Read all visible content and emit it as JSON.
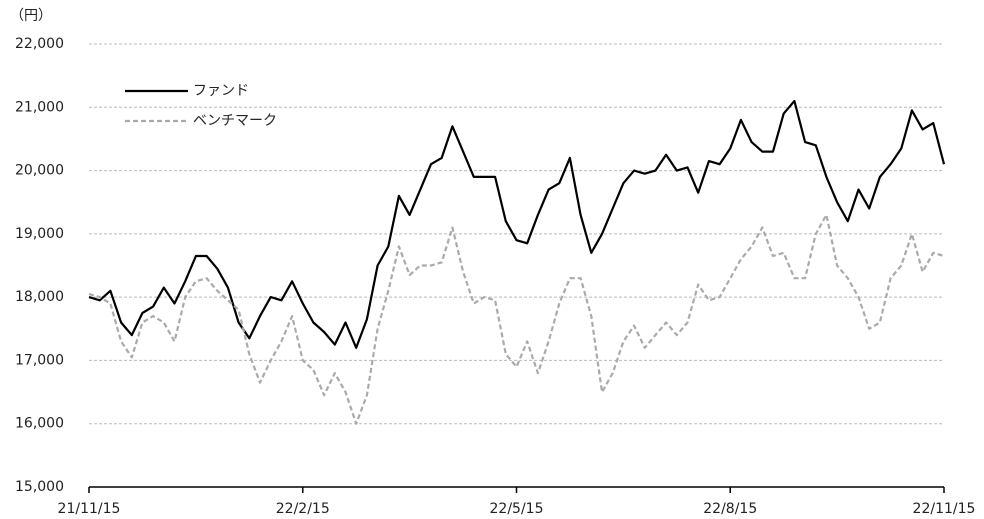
{
  "chart_data": {
    "type": "line",
    "unit_label": "（円）",
    "categories": [
      "21/11/15",
      null,
      null,
      null,
      null,
      null,
      null,
      null,
      null,
      null,
      null,
      null,
      null,
      null,
      null,
      null,
      null,
      null,
      null,
      null,
      "22/2/15",
      null,
      null,
      null,
      null,
      null,
      null,
      null,
      null,
      null,
      null,
      null,
      null,
      null,
      null,
      null,
      null,
      null,
      null,
      null,
      "22/5/15",
      null,
      null,
      null,
      null,
      null,
      null,
      null,
      null,
      null,
      null,
      null,
      null,
      null,
      null,
      null,
      null,
      null,
      null,
      null,
      "22/8/15",
      null,
      null,
      null,
      null,
      null,
      null,
      null,
      null,
      null,
      null,
      null,
      null,
      null,
      null,
      null,
      null,
      null,
      null,
      null,
      "22/11/15"
    ],
    "series": [
      {
        "name": "ファンド",
        "color": "#000000",
        "dashed": false,
        "values": [
          18000,
          17950,
          18100,
          17600,
          17400,
          17750,
          17850,
          18150,
          17900,
          18250,
          18650,
          18650,
          18450,
          18150,
          17600,
          17350,
          17700,
          18000,
          17950,
          18250,
          17900,
          17600,
          17450,
          17250,
          17600,
          17200,
          17650,
          18500,
          18800,
          19600,
          19300,
          19700,
          20100,
          20200,
          20700,
          20300,
          19900,
          19900,
          19900,
          19200,
          18900,
          18850,
          19300,
          19700,
          19800,
          20200,
          19300,
          18700,
          19000,
          19400,
          19800,
          20000,
          19950,
          20000,
          20250,
          20000,
          20050,
          19650,
          20150,
          20100,
          20350,
          20800,
          20450,
          20300,
          20300,
          20900,
          21100,
          20450,
          20400,
          19900,
          19500,
          19200,
          19700,
          19400,
          19900,
          20100,
          20350,
          20950,
          20650,
          20750,
          20100
        ]
      },
      {
        "name": "ベンチマーク",
        "color": "#aaaaaa",
        "dashed": true,
        "values": [
          18050,
          18000,
          17900,
          17300,
          17050,
          17600,
          17700,
          17600,
          17300,
          18000,
          18250,
          18300,
          18100,
          17950,
          17800,
          17100,
          16650,
          17000,
          17300,
          17700,
          17000,
          16850,
          16450,
          16800,
          16500,
          16000,
          16450,
          17500,
          18100,
          18800,
          18350,
          18500,
          18500,
          18550,
          19100,
          18400,
          17900,
          18000,
          17950,
          17100,
          16900,
          17300,
          16800,
          17300,
          17900,
          18300,
          18300,
          17700,
          16500,
          16800,
          17300,
          17550,
          17200,
          17400,
          17600,
          17400,
          17600,
          18200,
          17950,
          18000,
          18300,
          18600,
          18800,
          19100,
          18650,
          18700,
          18300,
          18300,
          19000,
          19300,
          18500,
          18300,
          18000,
          17500,
          17600,
          18300,
          18500,
          19000,
          18400,
          18700,
          18650
        ]
      }
    ],
    "ylim": [
      15000,
      22000
    ],
    "yticks": [
      {
        "value": 15000,
        "label": "15,000"
      },
      {
        "value": 16000,
        "label": "16,000"
      },
      {
        "value": 17000,
        "label": "17,000"
      },
      {
        "value": 18000,
        "label": "18,000"
      },
      {
        "value": 19000,
        "label": "19,000"
      },
      {
        "value": 20000,
        "label": "20,000"
      },
      {
        "value": 21000,
        "label": "21,000"
      },
      {
        "value": 22000,
        "label": "22,000"
      }
    ],
    "grid": true,
    "legend": "upper left"
  }
}
